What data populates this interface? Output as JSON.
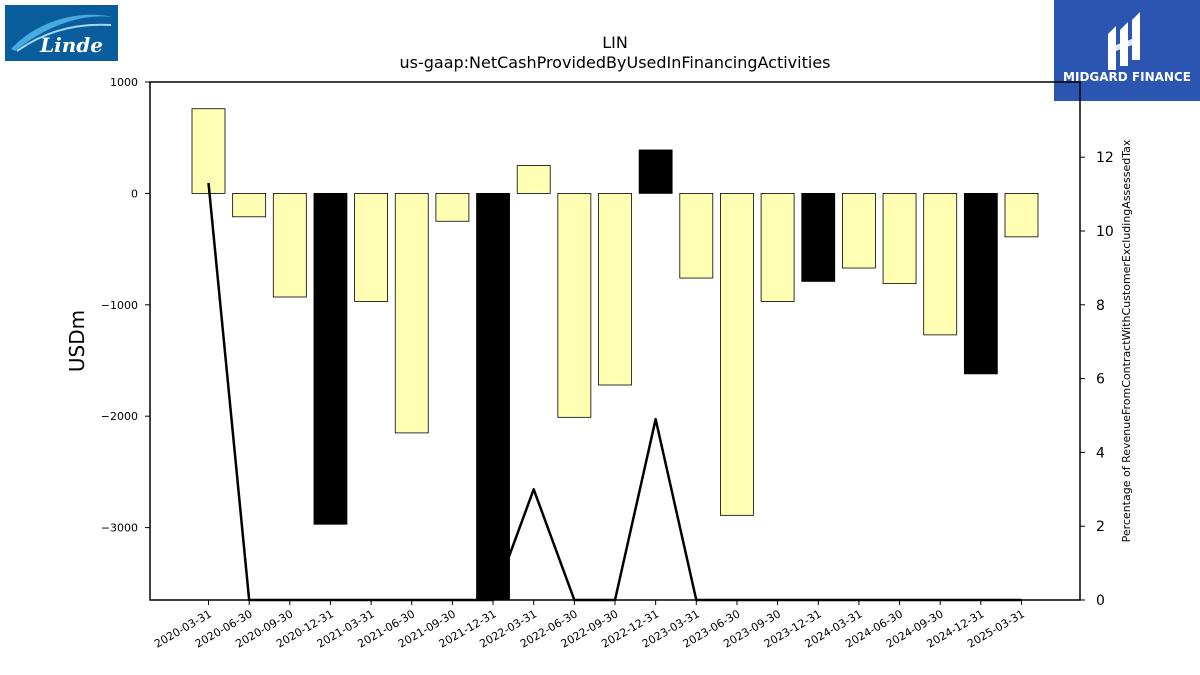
{
  "header": {
    "ticker": "LIN",
    "metric": "us-gaap:NetCashProvidedByUsedInFinancingActivities"
  },
  "logos": {
    "left": {
      "name": "linde-logo",
      "text": "Linde",
      "bg": "#0a5d9c"
    },
    "right": {
      "name": "midgard-finance-logo",
      "text": "MIDGARD FINANCE",
      "bg": "#2a55b1"
    }
  },
  "chart_data": {
    "type": "bar",
    "title": "LIN",
    "subtitle": "us-gaap:NetCashProvidedByUsedInFinancingActivities",
    "ylabel": "USDm",
    "y2label": "Percentage of RevenueFromContractWithCustomerExcludingAssessedTax",
    "ylim": [
      -3650,
      1000
    ],
    "y2lim": [
      0,
      14
    ],
    "yticks": [
      1000,
      0,
      -1000,
      -2000,
      -3000
    ],
    "y2ticks": [
      0,
      2,
      4,
      6,
      8,
      10,
      12
    ],
    "categories": [
      "2020-03-31",
      "2020-06-30",
      "2020-09-30",
      "2020-12-31",
      "2021-03-31",
      "2021-06-30",
      "2021-09-30",
      "2021-12-31",
      "2022-03-31",
      "2022-06-30",
      "2022-09-30",
      "2022-12-31",
      "2023-03-31",
      "2023-06-30",
      "2023-09-30",
      "2023-12-31",
      "2024-03-31",
      "2024-06-30",
      "2024-09-30",
      "2024-12-31",
      "2025-03-31"
    ],
    "values": [
      760,
      -210,
      -930,
      -2970,
      -970,
      -2150,
      -250,
      -3650,
      250,
      -2010,
      -1720,
      390,
      -760,
      -2890,
      -970,
      -790,
      -670,
      -810,
      -1270,
      -1620,
      -390
    ],
    "highlight": [
      false,
      false,
      false,
      true,
      false,
      false,
      false,
      true,
      false,
      false,
      false,
      true,
      false,
      false,
      false,
      true,
      false,
      false,
      false,
      true,
      false
    ],
    "bar_color": "#ffffb3",
    "highlight_color": "#000000",
    "line_series": {
      "values": [
        11.3,
        0,
        0,
        0,
        0,
        0,
        0,
        0,
        3.0,
        0,
        0,
        4.9,
        0,
        0,
        0,
        0,
        0,
        0,
        0,
        0,
        0
      ]
    },
    "grid": false,
    "legend": "none"
  }
}
